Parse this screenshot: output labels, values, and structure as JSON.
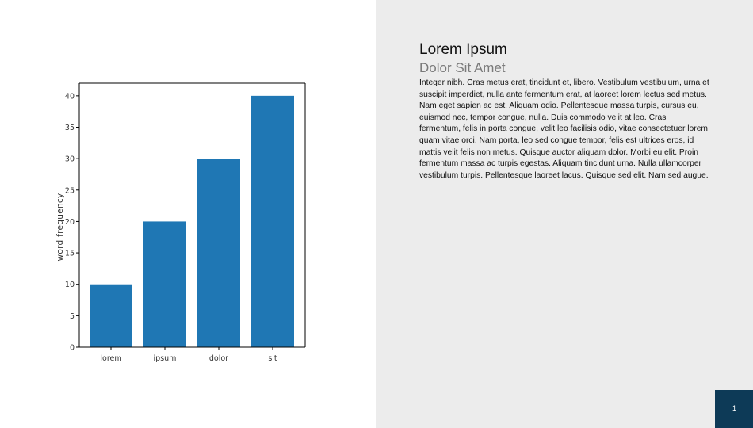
{
  "slide": {
    "title": "Lorem Ipsum",
    "subtitle": "Dolor Sit Amet",
    "body": "Integer nibh. Cras metus erat, tincidunt et, libero. Vestibulum vestibulum, urna et suscipit imperdiet, nulla ante fermentum erat, at laoreet lorem lectus sed metus. Nam eget sapien ac est. Aliquam odio. Pellentesque massa turpis, cursus eu, euismod nec, tempor congue, nulla. Duis commodo velit at leo. Cras fermentum, felis in porta congue, velit leo facilisis odio, vitae consectetuer lorem quam vitae orci. Nam porta, leo sed congue tempor, felis est ultrices eros, id mattis velit felis non metus. Quisque auctor aliquam dolor. Morbi eu elit. Proin fermentum massa ac turpis egestas. Aliquam tincidunt urna. Nulla ullamcorper vestibulum turpis. Pellentesque laoreet lacus. Quisque sed elit. Nam sed augue.",
    "page_number": "1"
  },
  "colors": {
    "bar": "#1f77b4",
    "right_panel_bg": "#ececec",
    "page_box_bg": "#0d3a57"
  },
  "chart_data": {
    "type": "bar",
    "categories": [
      "lorem",
      "ipsum",
      "dolor",
      "sit"
    ],
    "values": [
      10,
      20,
      30,
      40
    ],
    "title": "",
    "xlabel": "",
    "ylabel": "word frequency",
    "ylim": [
      0,
      42
    ],
    "yticks": [
      0,
      5,
      10,
      15,
      20,
      25,
      30,
      35,
      40
    ],
    "grid": false,
    "legend": "none"
  }
}
